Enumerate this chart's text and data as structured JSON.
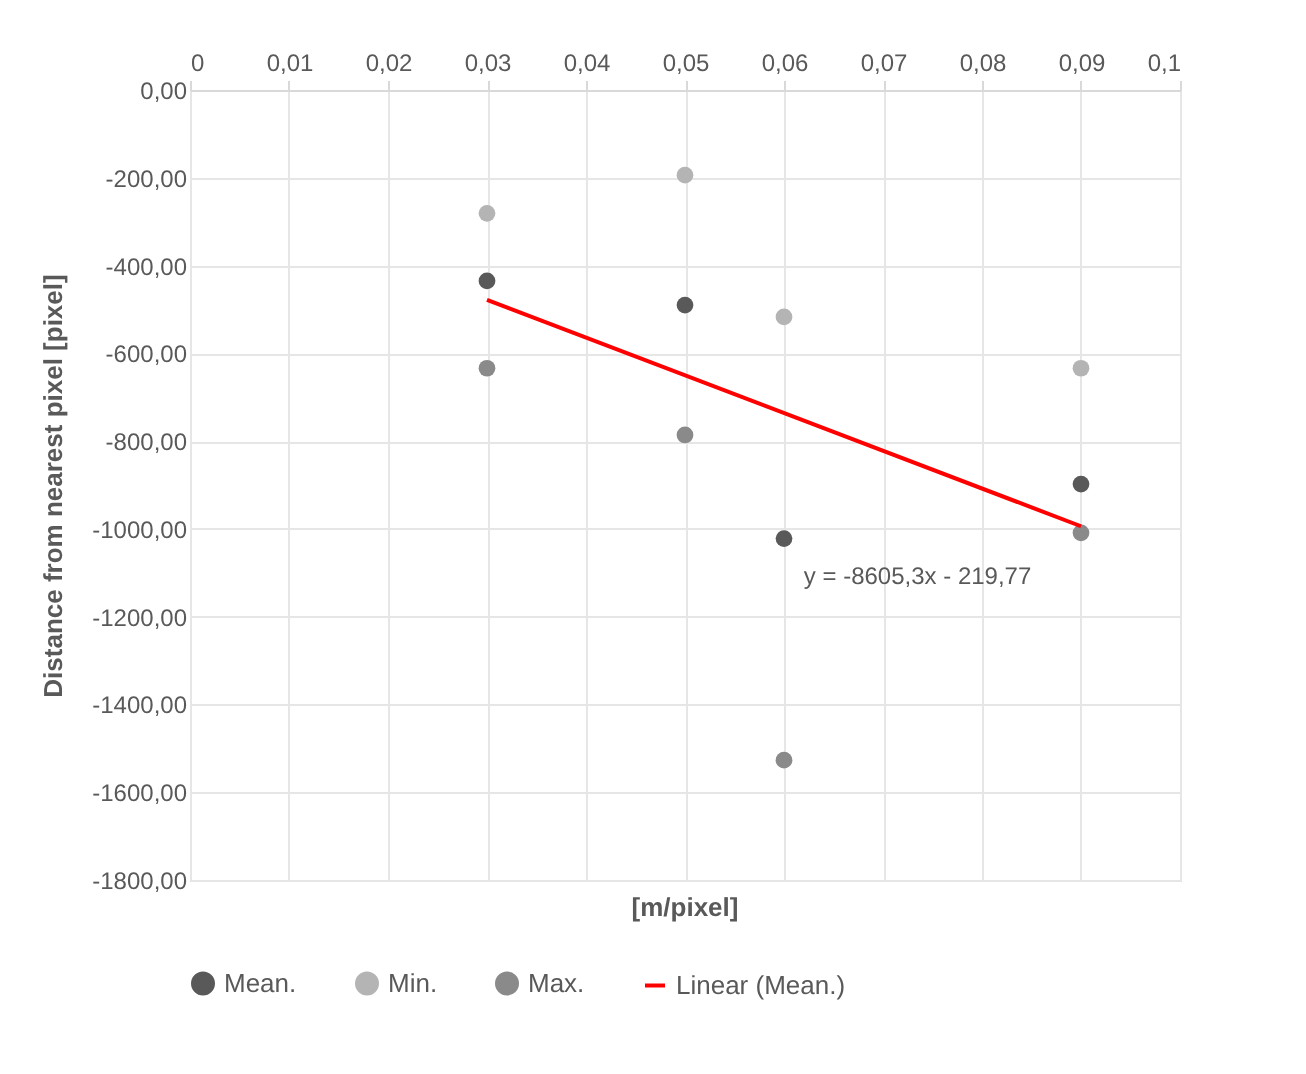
{
  "chart_data": {
    "type": "scatter",
    "xlabel": "[m/pixel]",
    "ylabel": "Distance from nearest pixel [pixel]",
    "x": [
      0.03,
      0.05,
      0.06,
      0.09
    ],
    "series": [
      {
        "name": "Mean.",
        "color": "#595959",
        "values": [
          -435,
          -490,
          -1022,
          -898
        ]
      },
      {
        "name": "Min.",
        "color": "#b4b4b4",
        "values": [
          -281,
          -194,
          -517,
          -634
        ]
      },
      {
        "name": "Max.",
        "color": "#8a8a8a",
        "values": [
          -634,
          -786,
          -1527,
          -1009
        ]
      },
      {
        "name": "Linear (Mean.)",
        "type": "line",
        "marker": "none",
        "color": "#ff0000",
        "x": [
          0.03,
          0.09
        ],
        "values": [
          -478,
          -994
        ]
      }
    ],
    "annotations": [
      "y = -8605,3x - 219,77"
    ],
    "xlim": [
      0,
      0.1
    ],
    "xticks": [
      0,
      {
        "value": 0.01,
        "label": "0,01"
      },
      {
        "value": 0.02,
        "label": "0,02"
      },
      {
        "value": 0.03,
        "label": "0,03"
      },
      {
        "value": 0.04,
        "label": "0,04"
      },
      {
        "value": 0.05,
        "label": "0,05"
      },
      {
        "value": 0.06,
        "label": "0,06"
      },
      {
        "value": 0.07,
        "label": "0,07"
      },
      {
        "value": 0.08,
        "label": "0,08"
      },
      {
        "value": 0.09,
        "label": "0,09"
      },
      {
        "value": 0.1,
        "label": "0,1"
      }
    ],
    "ylim": [
      -1800,
      0
    ],
    "yticks": [
      {
        "value": 0,
        "label": "0,00"
      },
      {
        "value": -200,
        "label": "-200,00"
      },
      {
        "value": -400,
        "label": "-400,00"
      },
      {
        "value": -600,
        "label": "-600,00"
      },
      {
        "value": -800,
        "label": "-800,00"
      },
      {
        "value": -1000,
        "label": "-1000,00"
      },
      {
        "value": -1200,
        "label": "-1200,00"
      },
      {
        "value": -1400,
        "label": "-1400,00"
      },
      {
        "value": -1600,
        "label": "-1600,00"
      },
      {
        "value": -1800,
        "label": "-1800,00"
      }
    ],
    "grid": true,
    "legend": "bottom",
    "marker": "circle"
  }
}
